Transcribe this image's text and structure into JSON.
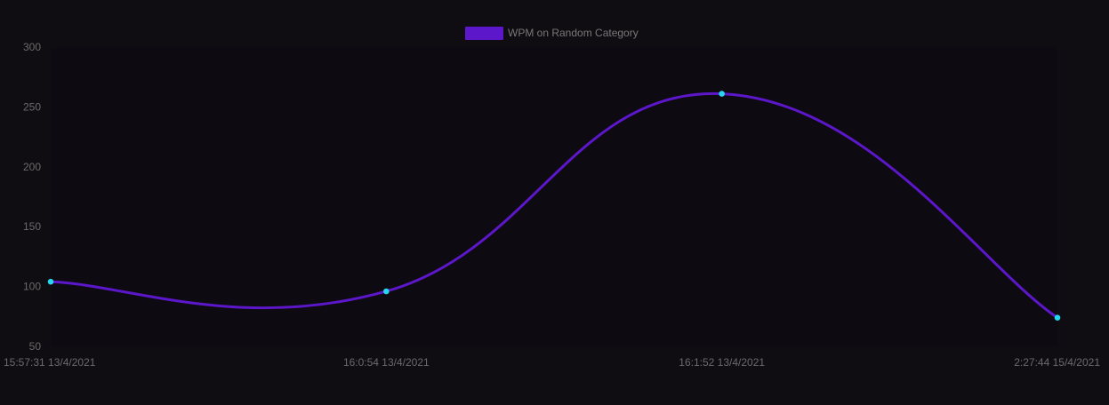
{
  "chart_data": {
    "type": "line",
    "title": "",
    "xlabel": "",
    "ylabel": "",
    "categories": [
      "15:57:31 13/4/2021",
      "16:0:54 13/4/2021",
      "16:1:52 13/4/2021",
      "2:27:44 15/4/2021"
    ],
    "series": [
      {
        "name": "WPM on Random Category",
        "values": [
          104,
          96,
          261,
          74
        ]
      }
    ],
    "ylim": [
      50,
      300
    ],
    "yticks": [
      "50",
      "100",
      "150",
      "200",
      "250",
      "300"
    ],
    "grid": false,
    "legend_position": "top-center",
    "colors": {
      "background": "#100d12",
      "line": "#5b17c9",
      "point_fill": "#27d6ee",
      "point_stroke": "#27d6ee",
      "tick_text": "#6a6a6a",
      "legend_text": "#777777"
    }
  }
}
